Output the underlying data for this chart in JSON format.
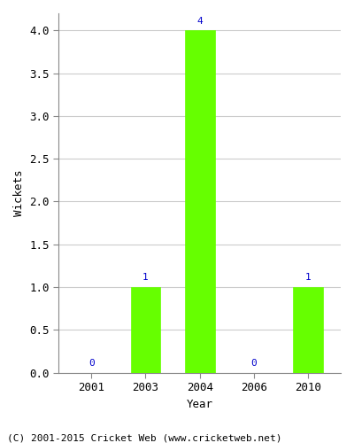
{
  "years": [
    "2001",
    "2003",
    "2004",
    "2006",
    "2010"
  ],
  "wickets": [
    0,
    1,
    4,
    0,
    1
  ],
  "bar_color": "#66ff00",
  "bar_edgecolor": "#66ff00",
  "label_color": "#0000cc",
  "xlabel": "Year",
  "ylabel": "Wickets",
  "ylim": [
    0,
    4.2
  ],
  "yticks": [
    0.0,
    0.5,
    1.0,
    1.5,
    2.0,
    2.5,
    3.0,
    3.5,
    4.0
  ],
  "grid_color": "#cccccc",
  "background_color": "#ffffff",
  "footnote": "(C) 2001-2015 Cricket Web (www.cricketweb.net)",
  "label_fontsize": 8,
  "axis_fontsize": 9,
  "tick_fontsize": 9,
  "footnote_fontsize": 8,
  "bar_width": 0.55
}
